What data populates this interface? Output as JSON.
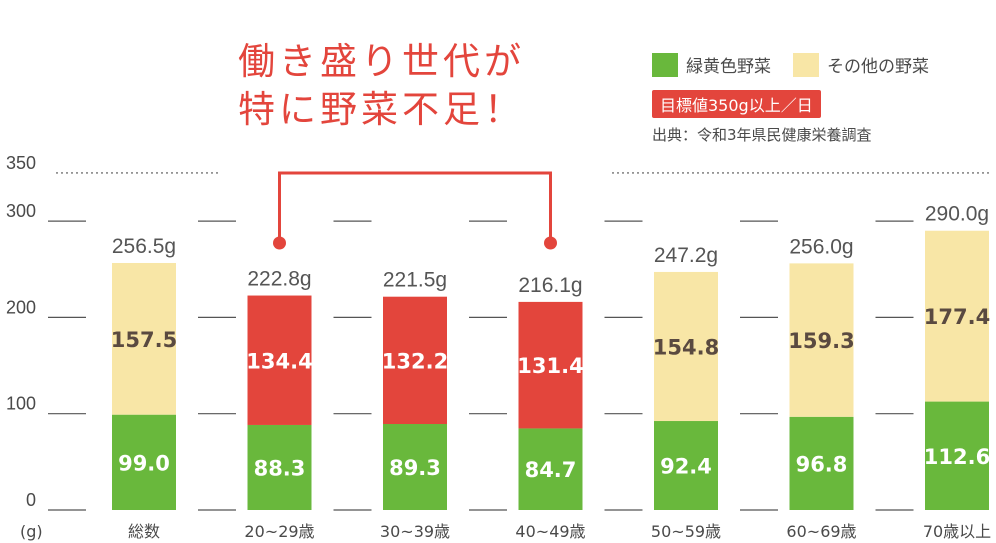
{
  "headline": {
    "line1": "働き盛り世代が",
    "line2": "特に野菜不足！"
  },
  "legend": {
    "green": "緑黄色野菜",
    "other": "その他の野菜"
  },
  "target_badge": "目標値350g以上／日",
  "source": "出典：令和3年県民健康栄養調査",
  "colors": {
    "green": "#69b83c",
    "other": "#f8e6a6",
    "red": "#e3453c",
    "other_text": "#5a4a40"
  },
  "chart_data": {
    "type": "bar",
    "stacked": true,
    "unit": "(g)",
    "categories": [
      "総数",
      "20~29歳",
      "30~39歳",
      "40~49歳",
      "50~59歳",
      "60~69歳",
      "70歳以上"
    ],
    "series": [
      {
        "name": "緑黄色野菜",
        "values": [
          99.0,
          88.3,
          89.3,
          84.7,
          92.4,
          96.8,
          112.6
        ]
      },
      {
        "name": "その他の野菜",
        "values": [
          157.5,
          134.4,
          132.2,
          131.4,
          154.8,
          159.3,
          177.4
        ]
      }
    ],
    "totals": [
      "256.5g",
      "222.8g",
      "221.5g",
      "216.1g",
      "247.2g",
      "256.0g",
      "290.0g"
    ],
    "highlighted": [
      false,
      true,
      true,
      true,
      false,
      false,
      false
    ],
    "bracket": [
      1,
      3
    ],
    "yticks": [
      0,
      100,
      200,
      300,
      350
    ],
    "target_line": 350,
    "ylim": [
      0,
      350
    ]
  }
}
